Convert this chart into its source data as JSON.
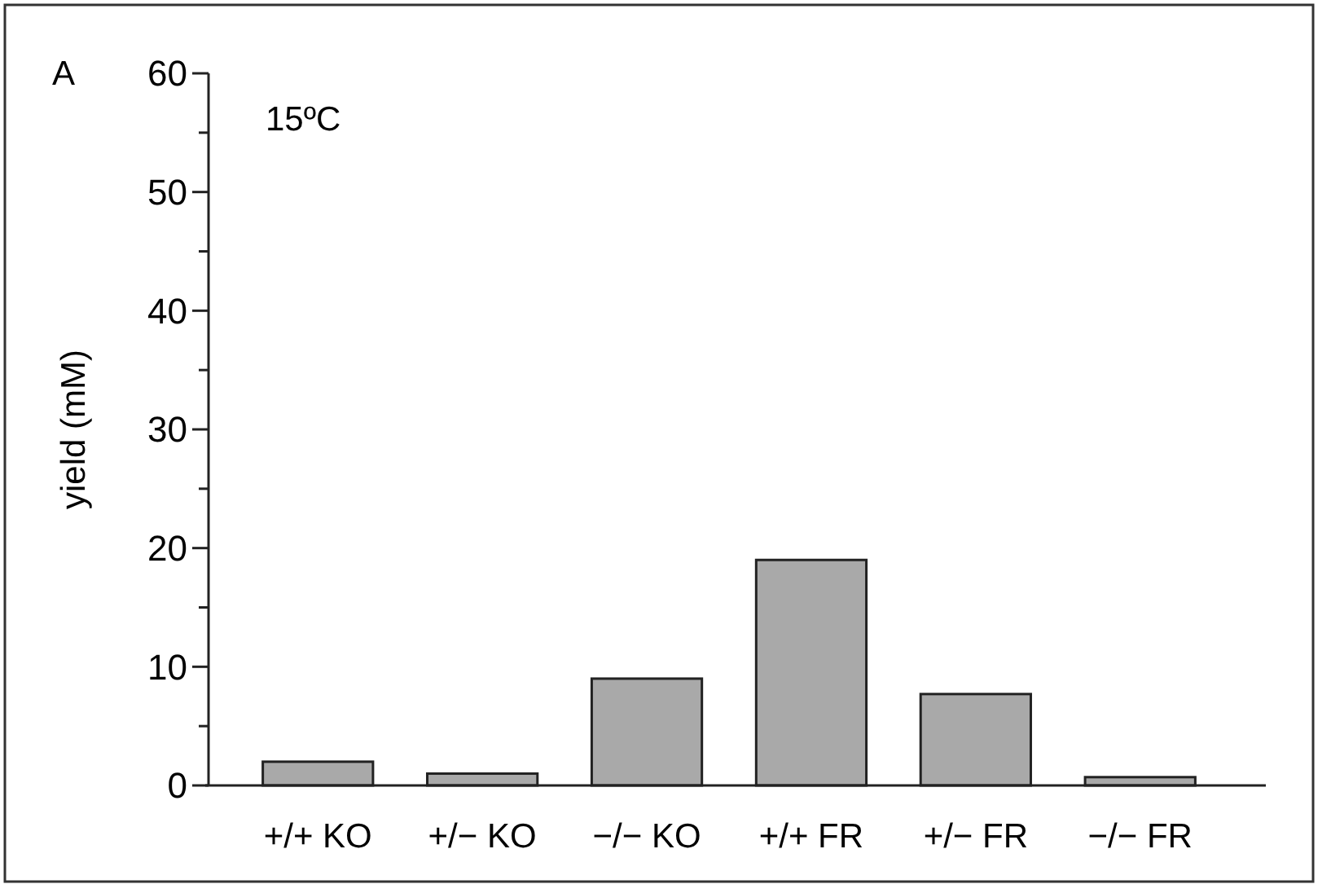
{
  "chart_data": {
    "type": "bar",
    "ylabel": "yield (mM)",
    "categories": [
      "+/+ KO",
      "+/− KO",
      "−/− KO",
      "+/+ FR",
      "+/− FR",
      "−/− FR"
    ],
    "values": [
      2,
      1,
      9,
      19,
      7.7,
      0.7
    ],
    "color": "#a9a9a9",
    "ylim": [
      0,
      60
    ],
    "yticks": [
      0,
      {
        "value": 5,
        "label": null
      },
      10,
      {
        "value": 15,
        "label": null
      },
      20,
      {
        "value": 25,
        "label": null
      },
      30,
      {
        "value": 35,
        "label": null
      },
      40,
      {
        "value": 45,
        "label": null
      },
      50,
      {
        "value": 55,
        "label": null
      },
      60
    ],
    "annotations": [
      "A",
      "15ºC"
    ]
  }
}
